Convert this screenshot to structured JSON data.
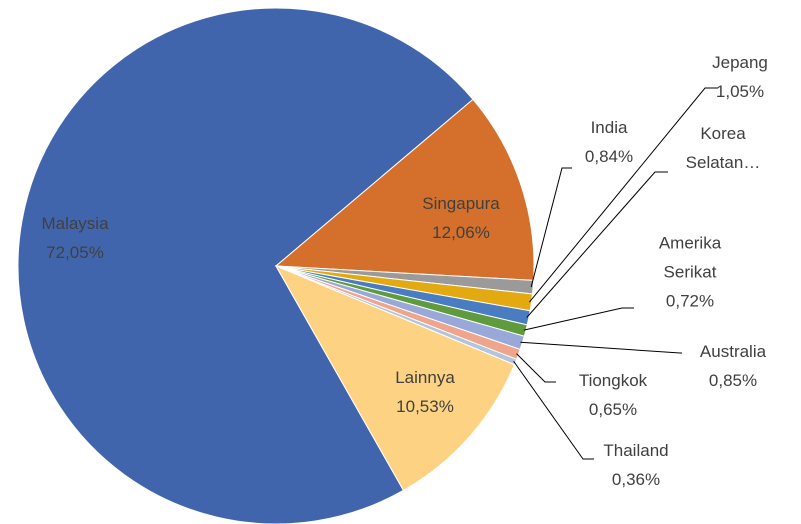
{
  "chart_data": {
    "type": "pie",
    "categories": [
      "Malaysia",
      "Singapura",
      "India",
      "Jepang",
      "Korea Selatan…",
      "Amerika Serikat",
      "Australia",
      "Tiongkok",
      "Thailand",
      "Lainnya"
    ],
    "values": [
      72.05,
      12.06,
      0.84,
      1.05,
      0.89,
      0.72,
      0.85,
      0.65,
      0.36,
      10.53
    ],
    "value_labels": [
      "72,05%",
      "12,06%",
      "0,84%",
      "1,05%",
      null,
      "0,72%",
      "0,85%",
      "0,65%",
      "0,36%",
      "10,53%"
    ],
    "colors": [
      "#4165ad",
      "#d4702b",
      "#9a9a9a",
      "#e2a911",
      "#4a7cc1",
      "#5f9a3d",
      "#97a8d9",
      "#eea58c",
      "#b4c4dc",
      "#fdd383"
    ]
  }
}
